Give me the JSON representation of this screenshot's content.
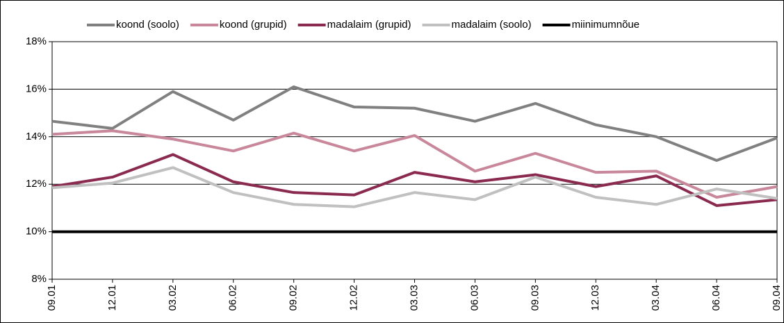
{
  "chart_data": {
    "type": "line",
    "categories": [
      "09.01",
      "12.01",
      "03.02",
      "06.02",
      "09.02",
      "12.02",
      "03.03",
      "06.03",
      "09.03",
      "12.03",
      "03.04",
      "06.04",
      "09.04"
    ],
    "series": [
      {
        "name": "koond (soolo)",
        "color": "#808080",
        "values": [
          14.65,
          14.35,
          15.9,
          14.7,
          16.1,
          15.25,
          15.2,
          14.65,
          15.4,
          14.5,
          14.0,
          13.0,
          13.95
        ]
      },
      {
        "name": "koond (grupid)",
        "color": "#c8879a",
        "values": [
          14.1,
          14.25,
          13.9,
          13.4,
          14.15,
          13.4,
          14.05,
          12.55,
          13.3,
          12.5,
          12.55,
          11.45,
          11.9
        ]
      },
      {
        "name": "madalaim (grupid)",
        "color": "#8b2a4f",
        "values": [
          11.9,
          12.3,
          13.25,
          12.1,
          11.65,
          11.55,
          12.5,
          12.1,
          12.4,
          11.9,
          12.35,
          11.1,
          11.35
        ]
      },
      {
        "name": "madalaim (soolo)",
        "color": "#c0c0c0",
        "values": [
          11.85,
          12.05,
          12.7,
          11.65,
          11.15,
          11.05,
          11.65,
          11.35,
          12.3,
          11.45,
          11.15,
          11.8,
          11.4
        ]
      },
      {
        "name": "miinimumnõue",
        "color": "#000000",
        "values": [
          10,
          10,
          10,
          10,
          10,
          10,
          10,
          10,
          10,
          10,
          10,
          10,
          10
        ]
      }
    ],
    "ylim": [
      8,
      18
    ],
    "yticks": [
      {
        "value": 8,
        "label": "8%"
      },
      {
        "value": 10,
        "label": "10%"
      },
      {
        "value": 12,
        "label": "12%"
      },
      {
        "value": 14,
        "label": "14%"
      },
      {
        "value": 16,
        "label": "16%"
      },
      {
        "value": 18,
        "label": "18%"
      }
    ],
    "grid": true
  }
}
